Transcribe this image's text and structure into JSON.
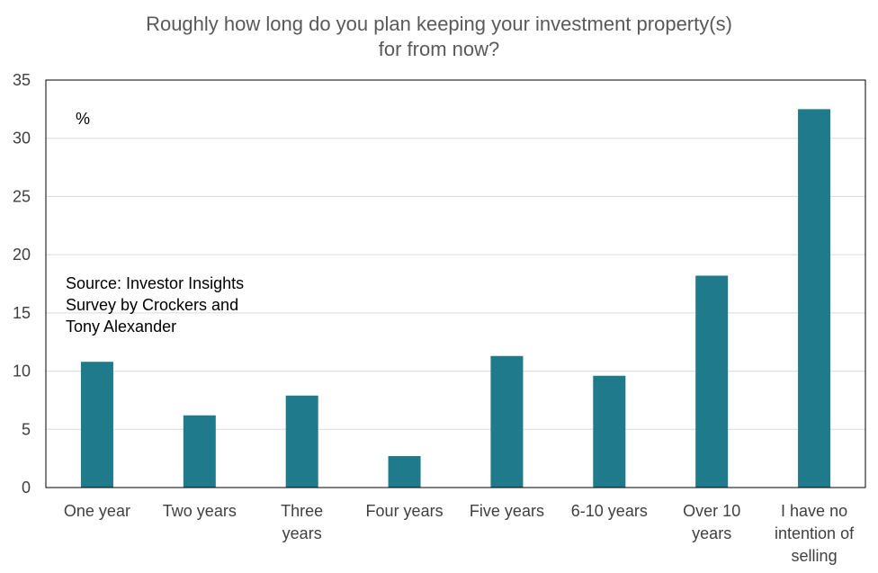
{
  "chart_data": {
    "type": "bar",
    "title_lines": [
      "Roughly how long do you plan keeping your investment property(s)",
      "for from now?"
    ],
    "unit_label": "%",
    "source_lines": [
      "Source: Investor Insights",
      "Survey by Crockers and",
      "Tony Alexander"
    ],
    "categories": [
      [
        "One year"
      ],
      [
        "Two years"
      ],
      [
        "Three",
        "years"
      ],
      [
        "Four years"
      ],
      [
        "Five years"
      ],
      [
        "6-10 years"
      ],
      [
        "Over 10",
        "years"
      ],
      [
        "I have no",
        "intention of",
        "selling"
      ]
    ],
    "values": [
      10.8,
      6.2,
      7.9,
      2.7,
      11.3,
      9.6,
      18.2,
      32.5
    ],
    "ylim": [
      0,
      35
    ],
    "yticks": [
      0,
      5,
      10,
      15,
      20,
      25,
      30,
      35
    ],
    "grid": true,
    "bar_color": "#1F7A8C"
  }
}
